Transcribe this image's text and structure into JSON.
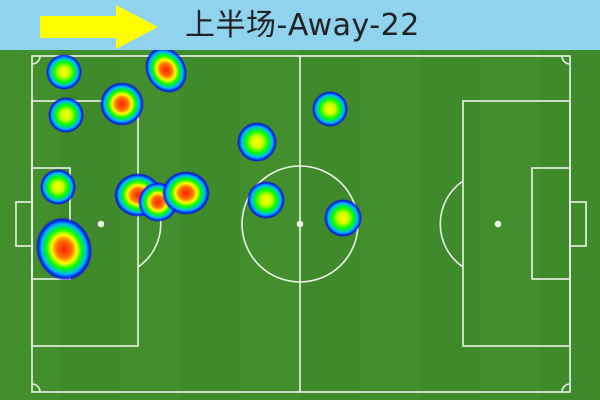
{
  "header": {
    "title": "上半场-Away-22",
    "background_color": "#8fd3ee",
    "arrow_icon": "right-arrow-icon",
    "arrow_color": "#ffff00"
  },
  "pitch": {
    "grass_colors": [
      "#3f8a2a",
      "#4a9a34"
    ],
    "line_color": "#ffffff"
  },
  "heatmap": {
    "color_scale": [
      "#0000ff",
      "#00c8ff",
      "#00ff00",
      "#ffff00",
      "#ff6000",
      "#ff2000"
    ],
    "hotspots_intensity": [
      0.5,
      0.5,
      0.75,
      0.75,
      0.45,
      0.5,
      0.5,
      0.75,
      0.8,
      0.8,
      0.45,
      0.5,
      0.45,
      0.9
    ]
  }
}
